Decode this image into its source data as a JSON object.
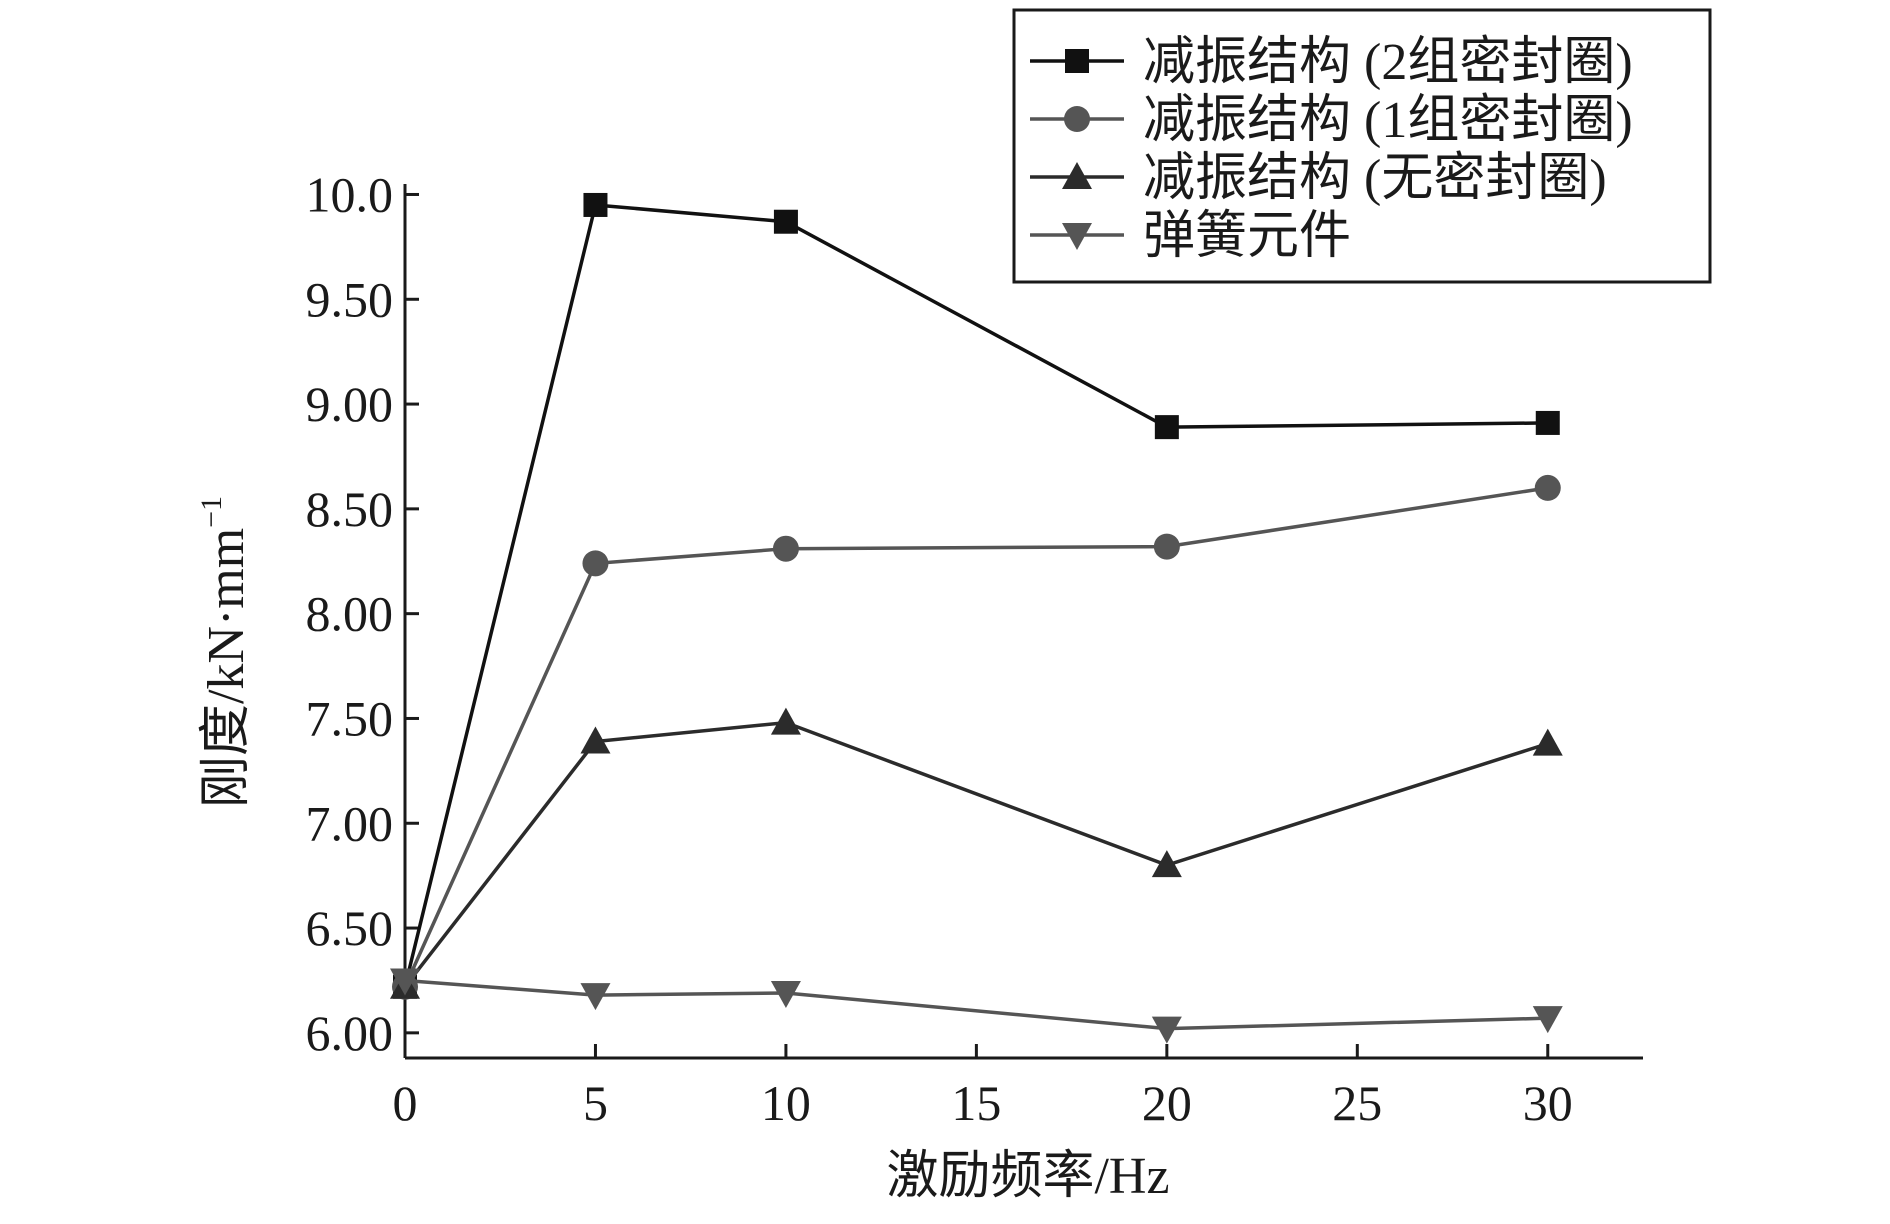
{
  "chart_data": {
    "type": "line",
    "xlabel": "激励频率/Hz",
    "ylabel_main": "刚度/kN·mm",
    "ylabel_sup": "−1",
    "xlim": [
      0,
      32.5
    ],
    "ylim": [
      5.88,
      10.05
    ],
    "xticks": [
      0,
      5,
      10,
      15,
      20,
      25,
      30
    ],
    "xtick_labels": [
      "0",
      "5",
      "10",
      "15",
      "20",
      "25",
      "30"
    ],
    "yticks": [
      6.0,
      6.5,
      7.0,
      7.5,
      8.0,
      8.5,
      9.0,
      9.5,
      10.0
    ],
    "ytick_labels": [
      "6.00",
      "6.50",
      "7.00",
      "7.50",
      "8.00",
      "8.50",
      "9.00",
      "9.50",
      "10.0"
    ],
    "grid": false,
    "legend_position": "top-right",
    "x": [
      0,
      5,
      10,
      20,
      30
    ],
    "series": [
      {
        "name": "减振结构 (2组密封圈)",
        "marker": "square",
        "color": "#111111",
        "values": [
          6.22,
          9.95,
          9.87,
          8.89,
          8.91
        ]
      },
      {
        "name": "减振结构 (1组密封圈)",
        "marker": "circle",
        "color": "#555555",
        "values": [
          6.22,
          8.24,
          8.31,
          8.32,
          8.6
        ]
      },
      {
        "name": "减振结构 (无密封圈)",
        "marker": "triangle-up",
        "color": "#2b2b2b",
        "values": [
          6.22,
          7.39,
          7.48,
          6.8,
          7.38
        ]
      },
      {
        "name": "弹簧元件",
        "marker": "triangle-down",
        "color": "#555555",
        "values": [
          6.25,
          6.18,
          6.19,
          6.02,
          6.07
        ]
      }
    ]
  }
}
